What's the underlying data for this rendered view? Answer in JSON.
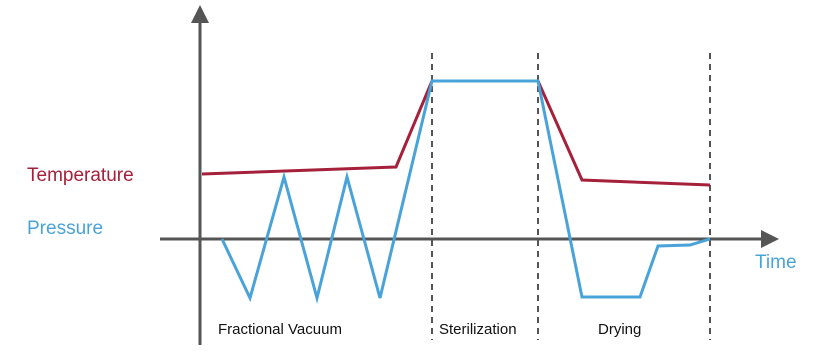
{
  "labels": {
    "temperature": "Temperature",
    "pressure": "Pressure",
    "time_axis": "Time"
  },
  "phases": [
    {
      "key": "vacuum",
      "label": "Fractional Vacuum"
    },
    {
      "key": "sterilization",
      "label": "Sterilization"
    },
    {
      "key": "drying",
      "label": "Drying"
    }
  ],
  "colors": {
    "temperature": "#a5203a",
    "pressure": "#4aa3d8",
    "axis": "#555555",
    "divider": "#555555",
    "time_label": "#4aa3d8"
  }
}
